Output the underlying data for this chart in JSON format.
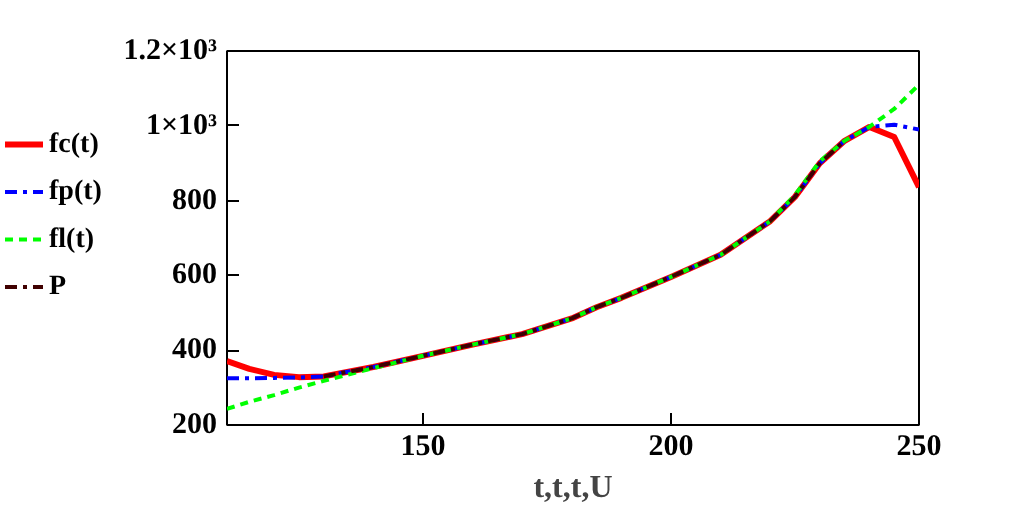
{
  "chart_data": {
    "type": "line",
    "xlabel": "t,t,t,U",
    "x": [
      110.5,
      115,
      120,
      125,
      130,
      140,
      150,
      160,
      170,
      180,
      185,
      190,
      200,
      210,
      215,
      220,
      225,
      230,
      235,
      240,
      245,
      250
    ],
    "series": [
      {
        "name": "fc(t)",
        "color": "#ff0000",
        "line_style": "solid",
        "values": [
          371,
          350,
          334,
          328,
          330,
          355,
          385,
          415,
          443,
          485,
          515,
          540,
          596,
          655,
          700,
          745,
          810,
          900,
          960,
          997,
          970,
          836
        ]
      },
      {
        "name": "fp(t)",
        "color": "#0000ff",
        "line_style": "dashdot",
        "values": [
          325,
          325,
          326,
          327,
          330,
          355,
          385,
          415,
          443,
          485,
          515,
          540,
          596,
          655,
          700,
          745,
          810,
          900,
          960,
          997,
          1003,
          990
        ]
      },
      {
        "name": "fl(t)",
        "color": "#00ff00",
        "line_style": "dashed",
        "values": [
          243,
          262,
          280,
          300,
          318,
          352,
          385,
          415,
          443,
          485,
          515,
          540,
          596,
          655,
          700,
          745,
          815,
          905,
          960,
          997,
          1045,
          1110
        ]
      },
      {
        "name": "P",
        "color": "#400000",
        "line_style": "dashdot",
        "values": [
          null,
          null,
          null,
          null,
          330,
          355,
          385,
          415,
          443,
          485,
          515,
          540,
          596,
          655,
          700,
          745,
          810,
          900,
          960,
          null,
          null,
          null
        ]
      }
    ],
    "xlim": [
      110.5,
      250
    ],
    "ylim": [
      200,
      1200
    ],
    "xticks": [
      150,
      200,
      250
    ],
    "yticks": [
      200,
      400,
      600,
      800,
      {
        "value": 1000,
        "label": "1×10³"
      },
      {
        "value": 1200,
        "label": "1.2×10³"
      }
    ],
    "grid": false,
    "legend": "left"
  }
}
